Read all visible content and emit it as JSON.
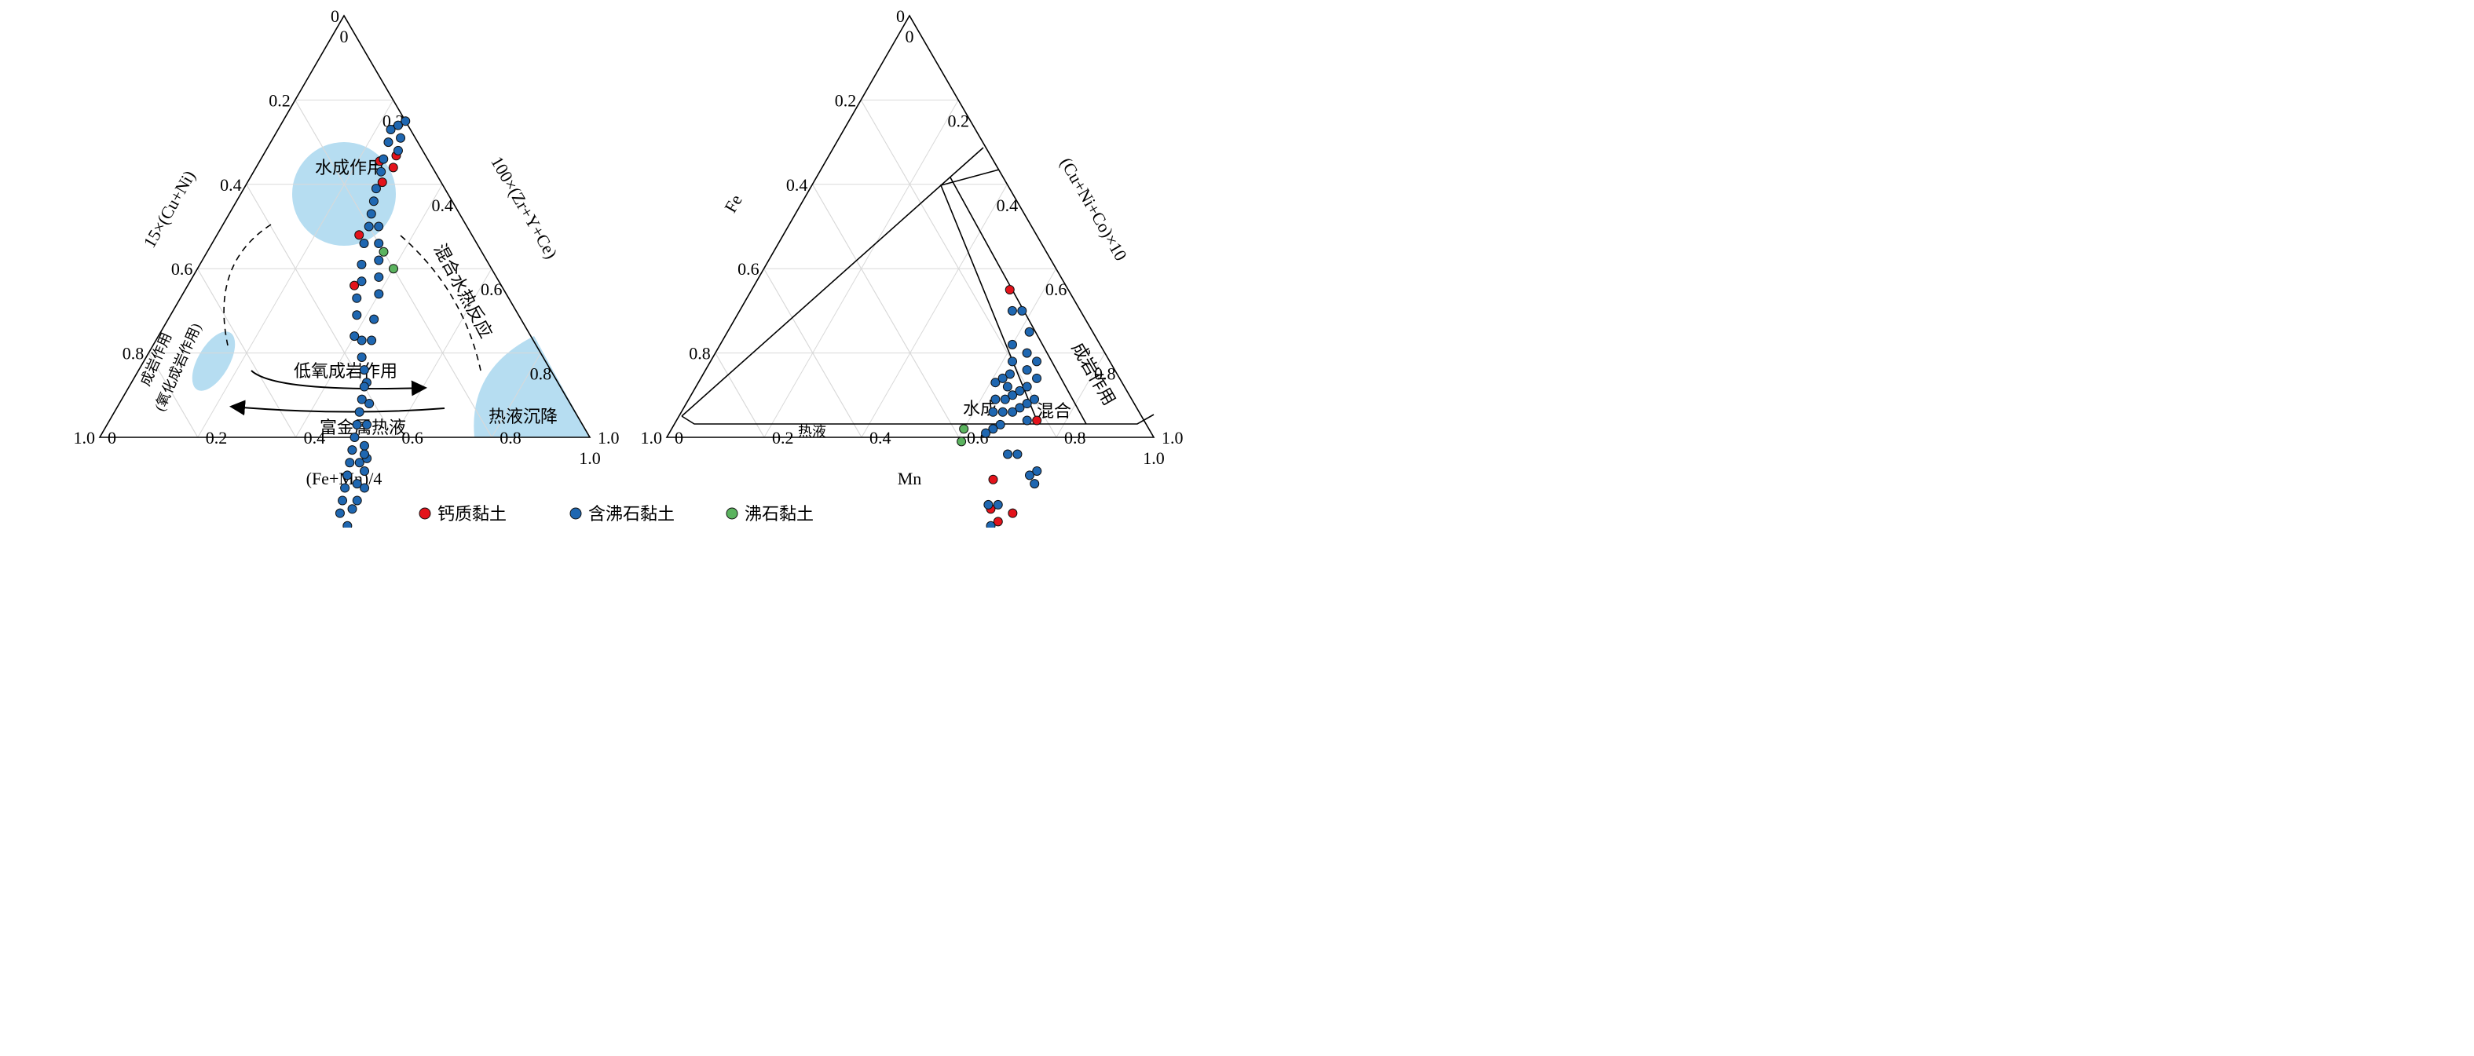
{
  "legend": [
    {
      "label": "钙质黏土",
      "color": "#e3131b"
    },
    {
      "label": "含沸石黏土",
      "color": "#1f67b1"
    },
    {
      "label": "沸石黏土",
      "color": "#5bb35f"
    }
  ],
  "chart_data": [
    {
      "type": "ternary-scatter",
      "axes": {
        "bottom": {
          "label": "(Fe+Mn)/4",
          "ticks": [
            "0",
            "0.2",
            "0.4",
            "0.6",
            "0.8",
            "1.0"
          ]
        },
        "left": {
          "label": "15×(Cu+Ni)",
          "ticks": [
            "0",
            "0.2",
            "0.4",
            "0.6",
            "0.8",
            "1.0"
          ]
        },
        "right": {
          "label": "100×(Zr+Y+Ce)",
          "ticks": [
            "1.0",
            "0.8",
            "0.6",
            "0.4",
            "0.2",
            "0"
          ]
        }
      },
      "grid": true,
      "regions": [
        {
          "label": "水成作用"
        },
        {
          "label": "混合水热反应"
        },
        {
          "label": "成岩作用",
          "sublabel": "(氧化成岩作用)"
        },
        {
          "label": "低氧成岩作用"
        },
        {
          "label": "富金属热液"
        },
        {
          "label": "热液沉降"
        }
      ],
      "series": [
        {
          "name": "钙质黏土",
          "color": "#e3131b",
          "points": [
            [
              0.245,
              0.1
            ],
            [
              0.275,
              0.12
            ],
            [
              0.272,
              0.06
            ],
            [
              0.28,
              0.08
            ],
            [
              0.29,
              0.23
            ],
            [
              0.34,
              0.3
            ]
          ]
        },
        {
          "name": "含沸石黏土",
          "color": "#1f67b1",
          "points": [
            [
              0.62,
              0.9
            ],
            [
              0.66,
              0.73
            ],
            [
              0.655,
              0.7
            ],
            [
              0.65,
              0.68
            ],
            [
              0.63,
              0.67
            ],
            [
              0.6,
              0.64
            ],
            [
              0.62,
              0.63
            ],
            [
              0.61,
              0.6
            ],
            [
              0.6,
              0.57
            ],
            [
              0.6,
              0.55
            ],
            [
              0.58,
              0.53
            ],
            [
              0.56,
              0.5
            ],
            [
              0.57,
              0.48
            ],
            [
              0.55,
              0.47
            ],
            [
              0.53,
              0.44
            ],
            [
              0.51,
              0.41
            ],
            [
              0.48,
              0.39
            ],
            [
              0.46,
              0.38
            ],
            [
              0.44,
              0.37
            ],
            [
              0.42,
              0.35
            ],
            [
              0.4,
              0.36
            ],
            [
              0.38,
              0.33
            ],
            [
              0.36,
              0.31
            ],
            [
              0.35,
              0.28
            ],
            [
              0.33,
              0.26
            ],
            [
              0.31,
              0.23
            ],
            [
              0.3,
              0.2
            ],
            [
              0.29,
              0.18
            ],
            [
              0.28,
              0.16
            ],
            [
              0.27,
              0.14
            ],
            [
              0.26,
              0.11
            ],
            [
              0.25,
              0.09
            ],
            [
              0.24,
              0.06
            ],
            [
              0.23,
              0.04
            ],
            [
              0.24,
              0.02
            ],
            [
              0.25,
              0.0
            ],
            [
              0.26,
              0.03
            ],
            [
              0.27,
              0.05
            ],
            [
              0.44,
              0.33
            ],
            [
              0.42,
              0.3
            ],
            [
              0.4,
              0.26
            ],
            [
              0.38,
              0.24
            ],
            [
              0.36,
              0.22
            ],
            [
              0.34,
              0.2
            ],
            [
              0.32,
              0.18
            ],
            [
              0.58,
              0.6
            ],
            [
              0.57,
              0.58
            ],
            [
              0.56,
              0.56
            ],
            [
              0.55,
              0.54
            ],
            [
              0.54,
              0.52
            ],
            [
              0.53,
              0.5
            ],
            [
              0.52,
              0.48
            ],
            [
              0.51,
              0.46
            ],
            [
              0.5,
              0.44
            ],
            [
              0.49,
              0.42
            ],
            [
              0.48,
              0.4
            ],
            [
              0.6,
              0.52
            ],
            [
              0.58,
              0.5
            ],
            [
              0.56,
              0.48
            ]
          ]
        },
        {
          "name": "沸石黏土",
          "color": "#5bb35f",
          "points": [
            [
              0.36,
              0.2
            ],
            [
              0.4,
              0.2
            ]
          ]
        }
      ]
    },
    {
      "type": "ternary-scatter",
      "axes": {
        "bottom": {
          "label": "Mn",
          "ticks": [
            "0",
            "0.2",
            "0.4",
            "0.6",
            "0.8",
            "1.0"
          ]
        },
        "left": {
          "label": "Fe",
          "ticks": [
            "0",
            "0.2",
            "0.4",
            "0.6",
            "0.8",
            "1.0"
          ]
        },
        "right": {
          "label": "(Cu+Ni+Co)×10",
          "ticks": [
            "1.0",
            "0.8",
            "0.6",
            "0.4",
            "0.2",
            "0"
          ]
        }
      },
      "grid": true,
      "regions": [
        {
          "label": "水成"
        },
        {
          "label": "混合"
        },
        {
          "label": "成岩作用"
        },
        {
          "label": "热液"
        }
      ],
      "series": [
        {
          "name": "钙质黏土",
          "color": "#e3131b",
          "points": [
            [
              0.53,
              0.12
            ],
            [
              0.72,
              0.38
            ],
            [
              0.75,
              0.42
            ],
            [
              0.78,
              0.42
            ],
            [
              0.8,
              0.38
            ],
            [
              0.74,
              0.22
            ]
          ]
        },
        {
          "name": "含沸石黏土",
          "color": "#1f67b1",
          "points": [
            [
              0.56,
              0.14
            ],
            [
              0.58,
              0.12
            ],
            [
              0.62,
              0.13
            ],
            [
              0.6,
              0.18
            ],
            [
              0.62,
              0.2
            ],
            [
              0.63,
              0.22
            ],
            [
              0.64,
              0.24
            ],
            [
              0.65,
              0.26
            ],
            [
              0.66,
              0.28
            ],
            [
              0.67,
              0.3
            ],
            [
              0.68,
              0.26
            ],
            [
              0.69,
              0.24
            ],
            [
              0.7,
              0.22
            ],
            [
              0.68,
              0.2
            ],
            [
              0.66,
              0.18
            ],
            [
              0.64,
              0.16
            ],
            [
              0.67,
              0.15
            ],
            [
              0.69,
              0.17
            ],
            [
              0.71,
              0.2
            ],
            [
              0.72,
              0.24
            ],
            [
              0.64,
              0.3
            ],
            [
              0.66,
              0.32
            ],
            [
              0.65,
              0.34
            ],
            [
              0.63,
              0.28
            ],
            [
              0.61,
              0.26
            ],
            [
              0.62,
              0.24
            ],
            [
              0.74,
              0.3
            ],
            [
              0.72,
              0.32
            ],
            [
              0.76,
              0.4
            ],
            [
              0.77,
              0.44
            ],
            [
              0.79,
              0.3
            ],
            [
              0.8,
              0.28
            ],
            [
              0.81,
              0.3
            ],
            [
              0.74,
              0.42
            ],
            [
              0.66,
              0.24
            ],
            [
              0.67,
              0.22
            ]
          ]
        },
        {
          "name": "沸石黏土",
          "color": "#5bb35f",
          "points": [
            [
              0.6,
              0.38
            ],
            [
              0.61,
              0.4
            ]
          ]
        }
      ]
    }
  ]
}
